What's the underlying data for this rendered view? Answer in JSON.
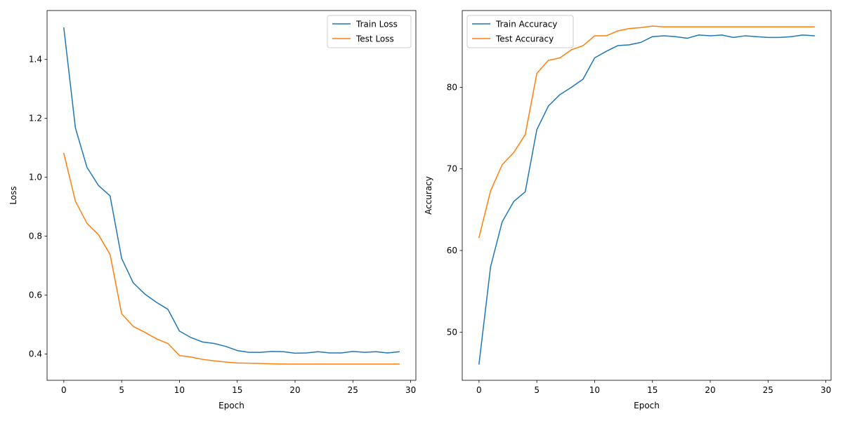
{
  "chart_data": [
    {
      "type": "line",
      "title": "",
      "xlabel": "Epoch",
      "ylabel": "Loss",
      "xlim": [
        -1.45,
        30.45
      ],
      "ylim": [
        0.311,
        1.566
      ],
      "xticks": [
        0,
        5,
        10,
        15,
        20,
        25,
        30
      ],
      "yticks": [
        0.4,
        0.6,
        0.8,
        1.0,
        1.2,
        1.4
      ],
      "ytick_format": 1,
      "grid": false,
      "legend_position": "upper right",
      "x": [
        0,
        1,
        2,
        3,
        4,
        5,
        6,
        7,
        8,
        9,
        10,
        11,
        12,
        13,
        14,
        15,
        16,
        17,
        18,
        19,
        20,
        21,
        22,
        23,
        24,
        25,
        26,
        27,
        28,
        29
      ],
      "series": [
        {
          "name": "Train Loss",
          "color": "#1f77b4",
          "values": [
            1.507,
            1.168,
            1.034,
            0.972,
            0.937,
            0.725,
            0.642,
            0.604,
            0.576,
            0.552,
            0.478,
            0.456,
            0.441,
            0.436,
            0.426,
            0.412,
            0.406,
            0.406,
            0.409,
            0.408,
            0.403,
            0.404,
            0.408,
            0.404,
            0.404,
            0.409,
            0.406,
            0.408,
            0.404,
            0.408
          ]
        },
        {
          "name": "Test Loss",
          "color": "#ff7f0e",
          "values": [
            1.081,
            0.919,
            0.844,
            0.805,
            0.738,
            0.537,
            0.494,
            0.474,
            0.452,
            0.436,
            0.395,
            0.39,
            0.382,
            0.377,
            0.373,
            0.37,
            0.369,
            0.368,
            0.367,
            0.366,
            0.366,
            0.366,
            0.366,
            0.366,
            0.366,
            0.366,
            0.366,
            0.366,
            0.366,
            0.366
          ]
        }
      ]
    },
    {
      "type": "line",
      "title": "",
      "xlabel": "Epoch",
      "ylabel": "Accuracy",
      "xlim": [
        -1.45,
        30.45
      ],
      "ylim": [
        44.1,
        89.4
      ],
      "xticks": [
        0,
        5,
        10,
        15,
        20,
        25,
        30
      ],
      "yticks": [
        50,
        60,
        70,
        80
      ],
      "ytick_format": 0,
      "grid": false,
      "legend_position": "upper left",
      "x": [
        0,
        1,
        2,
        3,
        4,
        5,
        6,
        7,
        8,
        9,
        10,
        11,
        12,
        13,
        14,
        15,
        16,
        17,
        18,
        19,
        20,
        21,
        22,
        23,
        24,
        25,
        26,
        27,
        28,
        29
      ],
      "series": [
        {
          "name": "Train Accuracy",
          "color": "#1f77b4",
          "values": [
            46.1,
            58.0,
            63.5,
            66.0,
            67.2,
            74.8,
            77.7,
            79.1,
            80.0,
            81.0,
            83.6,
            84.4,
            85.1,
            85.2,
            85.5,
            86.2,
            86.3,
            86.2,
            86.0,
            86.4,
            86.3,
            86.4,
            86.1,
            86.3,
            86.2,
            86.1,
            86.1,
            86.2,
            86.4,
            86.3
          ]
        },
        {
          "name": "Test Accuracy",
          "color": "#ff7f0e",
          "values": [
            61.6,
            67.3,
            70.5,
            72.0,
            74.2,
            81.7,
            83.3,
            83.6,
            84.6,
            85.1,
            86.3,
            86.3,
            86.9,
            87.2,
            87.3,
            87.5,
            87.4,
            87.4,
            87.4,
            87.4,
            87.4,
            87.4,
            87.4,
            87.4,
            87.4,
            87.4,
            87.4,
            87.4,
            87.4,
            87.4
          ]
        }
      ]
    }
  ]
}
